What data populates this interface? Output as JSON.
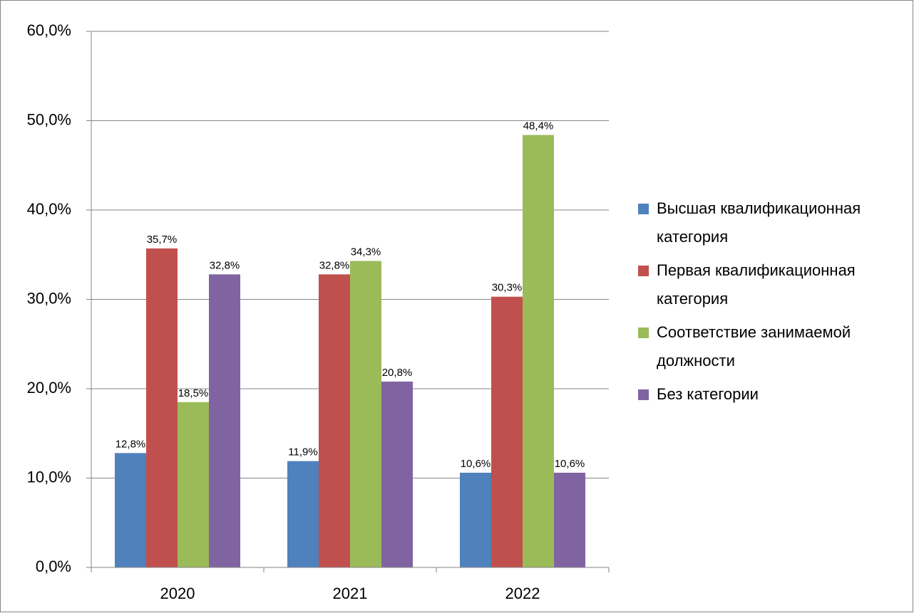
{
  "chart_data": {
    "type": "bar",
    "categories": [
      "2020",
      "2021",
      "2022"
    ],
    "series": [
      {
        "name": "Высшая квалификационная категория",
        "color": "#4f81bd",
        "values": [
          12.8,
          11.9,
          10.6
        ],
        "value_labels": [
          "12,8%",
          "11,9%",
          "10,6%"
        ]
      },
      {
        "name": "Первая квалификационная категория",
        "color": "#c0504d",
        "values": [
          35.7,
          32.8,
          30.3
        ],
        "value_labels": [
          "35,7%",
          "32,8%",
          "30,3%"
        ]
      },
      {
        "name": "Соответствие занимаемой должности",
        "color": "#9bbb59",
        "values": [
          18.5,
          34.3,
          48.4
        ],
        "value_labels": [
          "18,5%",
          "34,3%",
          "48,4%"
        ]
      },
      {
        "name": "Без категории",
        "color": "#8064a2",
        "values": [
          32.8,
          20.8,
          10.6
        ],
        "value_labels": [
          "32,8%",
          "20,8%",
          "10,6%"
        ]
      }
    ],
    "ylim": [
      0,
      60
    ],
    "yticks": [
      {
        "value": 0,
        "label": "0,0%"
      },
      {
        "value": 10,
        "label": "10,0%"
      },
      {
        "value": 20,
        "label": "20,0%"
      },
      {
        "value": 30,
        "label": "30,0%"
      },
      {
        "value": 40,
        "label": "40,0%"
      },
      {
        "value": 50,
        "label": "50,0%"
      },
      {
        "value": 60,
        "label": "60,0%"
      }
    ],
    "grid": true,
    "legend": "right"
  }
}
